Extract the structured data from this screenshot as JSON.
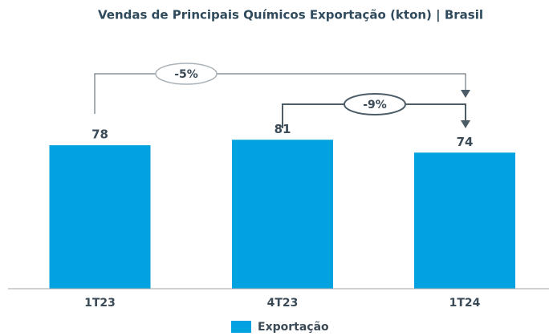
{
  "chart_data": {
    "type": "bar",
    "title": "Vendas de Principais Químicos Exportação  (kton) | Brasil",
    "categories": [
      "1T23",
      "4T23",
      "1T24"
    ],
    "series": [
      {
        "name": "Exportação",
        "color": "#00a3e0",
        "values": [
          78,
          81,
          74
        ]
      }
    ],
    "ylim": [
      0,
      157
    ],
    "annotations": [
      {
        "text": "-5%"
      },
      {
        "text": "-9%"
      }
    ]
  }
}
